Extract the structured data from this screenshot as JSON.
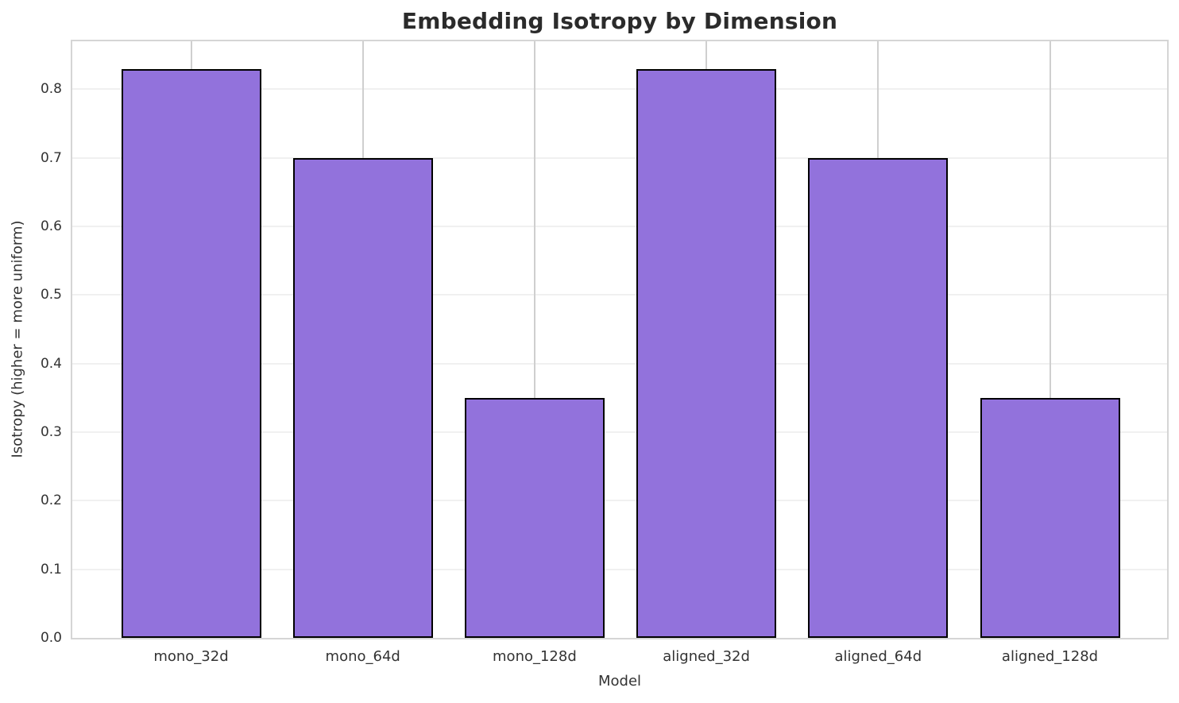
{
  "chart_data": {
    "type": "bar",
    "title": "Embedding Isotropy by Dimension",
    "xlabel": "Model",
    "ylabel": "Isotropy (higher = more uniform)",
    "categories": [
      "mono_32d",
      "mono_64d",
      "mono_128d",
      "aligned_32d",
      "aligned_64d",
      "aligned_128d"
    ],
    "values": [
      0.83,
      0.7,
      0.35,
      0.83,
      0.7,
      0.35
    ],
    "ylim": [
      0.0,
      0.87
    ],
    "yticks": [
      0.0,
      0.1,
      0.2,
      0.3,
      0.4,
      0.5,
      0.6,
      0.7,
      0.8
    ],
    "grid": true,
    "legend": "none",
    "bar_color": "#9272dc",
    "bar_edge_color": "#000000"
  }
}
